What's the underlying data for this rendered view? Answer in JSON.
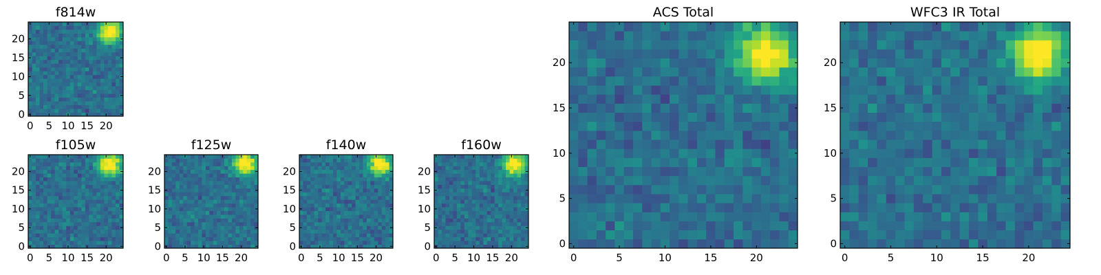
{
  "chart_data": [
    {
      "type": "heatmap",
      "title": "f814w",
      "colormap": "viridis",
      "grid_size": [
        25,
        25
      ],
      "xlim": [
        -0.5,
        24.5
      ],
      "ylim": [
        -0.5,
        24.5
      ],
      "xticks": [
        0,
        5,
        10,
        15,
        20
      ],
      "yticks": [
        0,
        5,
        10,
        15,
        20
      ],
      "bright_source": {
        "x": 21,
        "y": 22
      },
      "seed": 11
    },
    {
      "type": "heatmap",
      "title": "f105w",
      "colormap": "viridis",
      "grid_size": [
        25,
        25
      ],
      "xlim": [
        -0.5,
        24.5
      ],
      "ylim": [
        -0.5,
        24.5
      ],
      "xticks": [
        0,
        5,
        10,
        15,
        20
      ],
      "yticks": [
        0,
        5,
        10,
        15,
        20
      ],
      "bright_source": {
        "x": 21,
        "y": 22
      },
      "seed": 23
    },
    {
      "type": "heatmap",
      "title": "f125w",
      "colormap": "viridis",
      "grid_size": [
        25,
        25
      ],
      "xlim": [
        -0.5,
        24.5
      ],
      "ylim": [
        -0.5,
        24.5
      ],
      "xticks": [
        0,
        5,
        10,
        15,
        20
      ],
      "yticks": [
        0,
        5,
        10,
        15,
        20
      ],
      "bright_source": {
        "x": 21,
        "y": 22
      },
      "seed": 37
    },
    {
      "type": "heatmap",
      "title": "f140w",
      "colormap": "viridis",
      "grid_size": [
        25,
        25
      ],
      "xlim": [
        -0.5,
        24.5
      ],
      "ylim": [
        -0.5,
        24.5
      ],
      "xticks": [
        0,
        5,
        10,
        15,
        20
      ],
      "yticks": [
        0,
        5,
        10,
        15,
        20
      ],
      "bright_source": {
        "x": 21,
        "y": 22
      },
      "seed": 41
    },
    {
      "type": "heatmap",
      "title": "f160w",
      "colormap": "viridis",
      "grid_size": [
        25,
        25
      ],
      "xlim": [
        -0.5,
        24.5
      ],
      "ylim": [
        -0.5,
        24.5
      ],
      "xticks": [
        0,
        5,
        10,
        15,
        20
      ],
      "yticks": [
        0,
        5,
        10,
        15,
        20
      ],
      "bright_source": {
        "x": 21,
        "y": 22
      },
      "seed": 53
    },
    {
      "type": "heatmap",
      "title": "ACS Total",
      "colormap": "viridis",
      "grid_size": [
        25,
        25
      ],
      "xlim": [
        -0.5,
        24.5
      ],
      "ylim": [
        -0.5,
        24.5
      ],
      "xticks": [
        0,
        5,
        10,
        15,
        20
      ],
      "yticks": [
        0,
        5,
        10,
        15,
        20
      ],
      "bright_source": {
        "x": 21,
        "y": 21
      },
      "seed": 67
    },
    {
      "type": "heatmap",
      "title": "WFC3 IR Total",
      "colormap": "viridis",
      "grid_size": [
        25,
        25
      ],
      "xlim": [
        -0.5,
        24.5
      ],
      "ylim": [
        -0.5,
        24.5
      ],
      "xticks": [
        0,
        5,
        10,
        15,
        20
      ],
      "yticks": [
        0,
        5,
        10,
        15,
        20
      ],
      "bright_source": {
        "x": 21,
        "y": 21
      },
      "seed": 79
    }
  ]
}
